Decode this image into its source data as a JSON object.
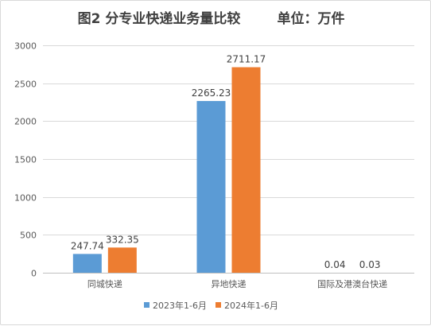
{
  "chart_data": {
    "type": "bar",
    "title": "图2  分专业快递业务量比较",
    "unit_label": "单位：万件",
    "categories": [
      "同城快递",
      "异地快递",
      "国际及港澳台快递"
    ],
    "series": [
      {
        "name": "2023年1-6月",
        "color": "#5b9bd5",
        "values": [
          247.74,
          2265.23,
          0.04
        ],
        "labels": [
          "247.74",
          "2265.23",
          "0.04"
        ]
      },
      {
        "name": "2024年1-6月",
        "color": "#ed7d31",
        "values": [
          332.35,
          2711.17,
          0.03
        ],
        "labels": [
          "332.35",
          "2711.17",
          "0.03"
        ]
      }
    ],
    "y_ticks": [
      "0",
      "500",
      "1000",
      "1500",
      "2000",
      "2500",
      "3000"
    ],
    "ylim": [
      0,
      3000
    ],
    "grid": true,
    "legend_position": "bottom"
  }
}
